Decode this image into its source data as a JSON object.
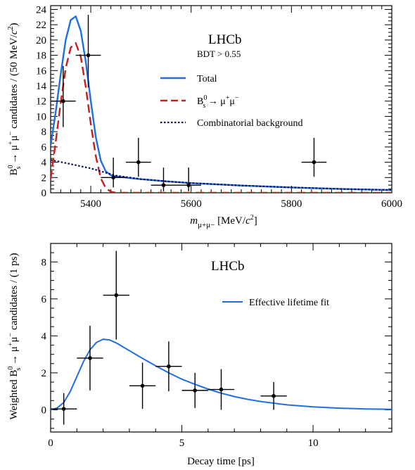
{
  "colors": {
    "total": "#1f6fe0",
    "signal": "#c81e1e",
    "background": "#0a0a5a",
    "points": "#000000"
  },
  "top_panel": {
    "experiment": "LHCb",
    "selection": "BDT > 0.55",
    "ylabel_parts": [
      "B",
      "0",
      "s",
      " → μ",
      "+",
      "μ",
      "−",
      " candidates / (50 MeV/",
      "c",
      "2",
      ")"
    ],
    "xlabel_parts": [
      "m",
      "μ+μ−",
      " [MeV/",
      "c",
      "2",
      "]"
    ],
    "legend": [
      {
        "key": "total",
        "text": "Total",
        "style": "solid"
      },
      {
        "key": "signal",
        "text_parts": [
          "B",
          "0",
          "s",
          " → μ",
          "+",
          "μ",
          "−"
        ],
        "style": "dashed"
      },
      {
        "key": "background",
        "text": "Combinatorial background",
        "style": "dotted"
      }
    ]
  },
  "bottom_panel": {
    "experiment": "LHCb",
    "ylabel_parts": [
      "Weighted B",
      "0",
      "s",
      " → μ",
      "+",
      "μ",
      "−",
      " candidates / (1 ps)"
    ],
    "xlabel": "Decay time [ps]",
    "legend": [
      {
        "key": "fit",
        "text": "Effective lifetime fit",
        "style": "solid"
      }
    ]
  },
  "chart_data": [
    {
      "type": "scatter",
      "xlim": [
        5320,
        6000
      ],
      "ylim": [
        0,
        24.5
      ],
      "xticks": [
        5400,
        5600,
        5800,
        6000
      ],
      "yticks": [
        0,
        2,
        4,
        6,
        8,
        10,
        12,
        14,
        16,
        18,
        20,
        22,
        24
      ],
      "data_points": {
        "x": [
          5345,
          5395,
          5445,
          5495,
          5545,
          5595,
          5845
        ],
        "y": [
          12,
          18,
          2,
          4,
          1,
          1,
          4
        ],
        "xerr": 25,
        "yerr_low": [
          3.4,
          4.2,
          1.3,
          1.9,
          0.8,
          0.8,
          1.9
        ],
        "yerr_high": [
          4.6,
          5.3,
          2.6,
          3.2,
          2.3,
          2.3,
          3.2
        ]
      },
      "series": [
        {
          "name": "Total",
          "x": [
            5320,
            5330,
            5340,
            5350,
            5360,
            5370,
            5380,
            5390,
            5400,
            5410,
            5420,
            5430,
            5440,
            5450,
            5475,
            5500,
            5550,
            5600,
            5700,
            5800,
            5900,
            6000
          ],
          "y": [
            6.2,
            10.5,
            15.5,
            20.0,
            22.6,
            23.1,
            21.2,
            17.2,
            12.0,
            7.3,
            4.2,
            2.8,
            2.3,
            2.15,
            1.95,
            1.78,
            1.5,
            1.27,
            0.95,
            0.7,
            0.5,
            0.36
          ]
        },
        {
          "name": "B_s^0 → μ+μ−",
          "x": [
            5320,
            5330,
            5340,
            5350,
            5360,
            5370,
            5380,
            5390,
            5400,
            5410,
            5420,
            5430,
            5440,
            5450,
            6000
          ],
          "y": [
            1.8,
            6.6,
            11.8,
            16.3,
            19.0,
            19.6,
            17.8,
            13.9,
            9.0,
            4.8,
            1.9,
            0.6,
            0.15,
            0.0,
            0.0
          ]
        },
        {
          "name": "Combinatorial background",
          "x": [
            5320,
            5350,
            5400,
            5450,
            5500,
            5550,
            5600,
            5700,
            5800,
            5900,
            6000
          ],
          "y": [
            4.3,
            3.9,
            3.2,
            2.25,
            1.8,
            1.5,
            1.27,
            0.95,
            0.7,
            0.5,
            0.36
          ]
        }
      ]
    },
    {
      "type": "scatter",
      "xlim": [
        0,
        13
      ],
      "ylim": [
        -1.2,
        9.0
      ],
      "xticks": [
        0,
        5,
        10
      ],
      "yticks": [
        0,
        2,
        4,
        6,
        8
      ],
      "data_points": {
        "x": [
          0.5,
          1.5,
          2.5,
          3.5,
          4.5,
          5.5,
          6.5,
          8.5
        ],
        "y": [
          0.05,
          2.8,
          6.2,
          1.3,
          2.35,
          1.05,
          1.1,
          0.75
        ],
        "xerr": [
          0.5,
          0.5,
          0.5,
          0.5,
          0.5,
          0.5,
          0.5,
          0.5
        ],
        "yerr": [
          0.85,
          1.75,
          2.4,
          1.25,
          1.35,
          0.95,
          1.1,
          0.75
        ]
      },
      "series": [
        {
          "name": "Effective lifetime fit",
          "x": [
            0,
            0.25,
            0.5,
            0.75,
            1.0,
            1.25,
            1.5,
            1.75,
            2.0,
            2.25,
            2.5,
            3.0,
            3.5,
            4.0,
            4.5,
            5.0,
            5.5,
            6.0,
            6.5,
            7.0,
            7.5,
            8.0,
            9.0,
            10.0,
            11.0,
            12.0,
            13.0
          ],
          "y": [
            0.0,
            0.1,
            0.4,
            1.0,
            1.8,
            2.6,
            3.25,
            3.65,
            3.82,
            3.78,
            3.62,
            3.2,
            2.78,
            2.38,
            2.0,
            1.66,
            1.38,
            1.12,
            0.9,
            0.72,
            0.57,
            0.45,
            0.27,
            0.16,
            0.09,
            0.05,
            0.03
          ]
        }
      ]
    }
  ]
}
